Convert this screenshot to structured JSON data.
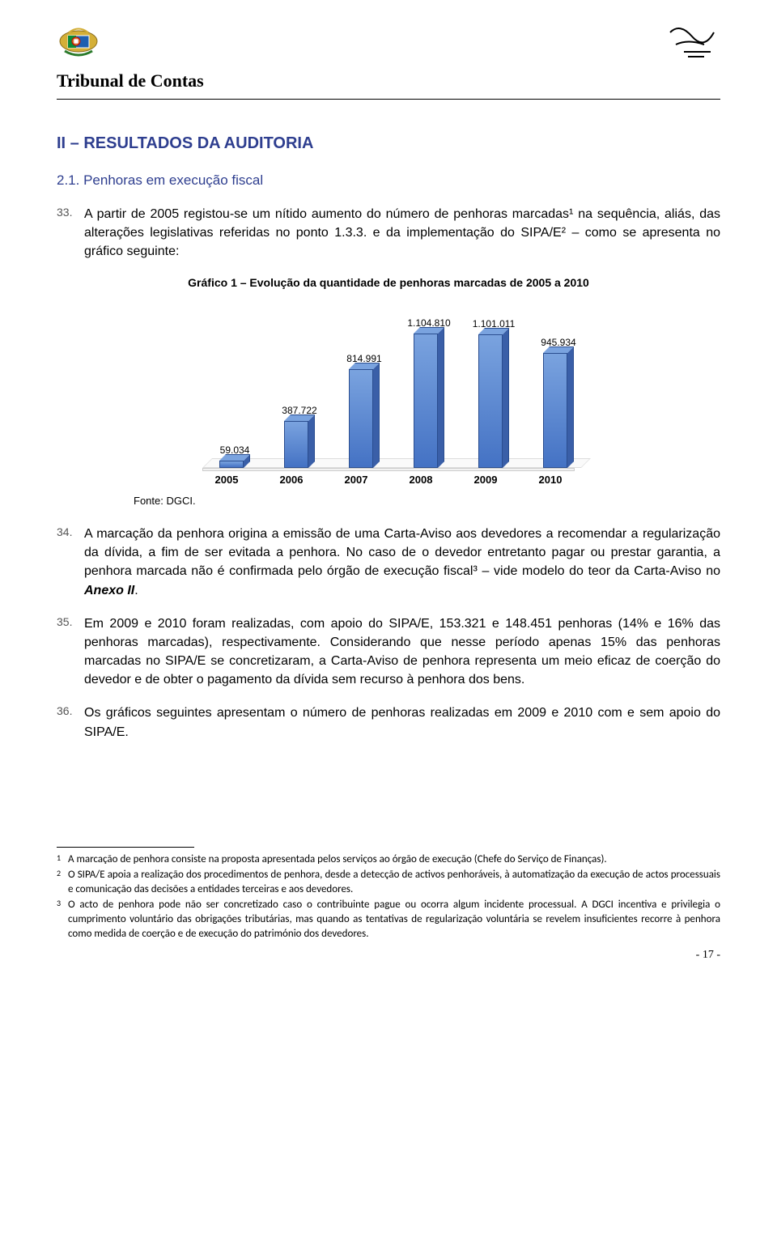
{
  "header": {
    "org_title": "Tribunal de Contas"
  },
  "section": {
    "heading_prefix": "II – R",
    "heading_rest": "ESULTADOS DA AUDITORIA",
    "subsection": "2.1. Penhoras em execução fiscal"
  },
  "paragraphs": {
    "p33_num": "33.",
    "p33_body": "A partir de 2005 registou-se um nítido aumento do número de penhoras marcadas¹ na sequência, aliás, das alterações legislativas referidas no ponto 1.3.3. e da implementação do SIPA/E² – como se apresenta no gráfico seguinte:",
    "p34_num": "34.",
    "p34_body_a": "A marcação da penhora origina a emissão de uma Carta-Aviso aos devedores a recomendar a regularização da dívida, a fim de ser evitada a penhora. No caso de o devedor entretanto pagar ou prestar garantia, a penhora marcada não é confirmada pelo órgão de execução fiscal³ – vide modelo do teor da Carta-Aviso no ",
    "p34_body_b": "Anexo II",
    "p34_body_c": ".",
    "p35_num": "35.",
    "p35_body": "Em 2009 e 2010 foram realizadas, com apoio do SIPA/E, 153.321 e 148.451 penhoras (14% e 16% das penhoras marcadas), respectivamente. Considerando que nesse período apenas 15% das penhoras marcadas no SIPA/E se concretizaram, a Carta-Aviso de penhora representa um meio eficaz de coerção do devedor e de obter o pagamento da dívida sem recurso à penhora dos bens.",
    "p36_num": "36.",
    "p36_body": "Os gráficos seguintes apresentam o número de penhoras realizadas em 2009 e 2010 com e sem apoio do SIPA/E."
  },
  "chart": {
    "caption": "Gráfico 1 – Evolução da quantidade de penhoras marcadas de 2005 a 2010",
    "font_note": "Fonte: DGCI.",
    "max_value": 1200000,
    "bar_color_front": "#4472c4",
    "bar_color_side": "#3a5fa8",
    "bar_color_top": "#7aa3df",
    "categories": [
      "2005",
      "2006",
      "2007",
      "2008",
      "2009",
      "2010"
    ],
    "value_labels": [
      "59.034",
      "387.722",
      "814.991",
      "1.104.810",
      "1.101.011",
      "945.934"
    ],
    "values": [
      59034,
      387722,
      814991,
      1104810,
      1101011,
      945934
    ]
  },
  "footnotes": {
    "f1_num": "1",
    "f1_body": "A marcação de penhora consiste na proposta apresentada pelos serviços ao órgão de execução (Chefe do Serviço de Finanças).",
    "f2_num": "2",
    "f2_body": "O SIPA/E apoia a realização dos procedimentos de penhora, desde a detecção de activos penhoráveis, à automatização da execução de actos processuais e comunicação das decisões a entidades terceiras e aos devedores.",
    "f3_num": "3",
    "f3_body": "O acto de penhora pode não ser concretizado caso o contribuinte pague ou ocorra algum incidente processual. A DGCI incentiva e privilegia o cumprimento voluntário das obrigações tributárias, mas quando as tentativas de regularização voluntária se revelem insuficientes recorre à penhora como medida de coerção e de execução do património dos devedores."
  },
  "page_number": "- 17 -"
}
